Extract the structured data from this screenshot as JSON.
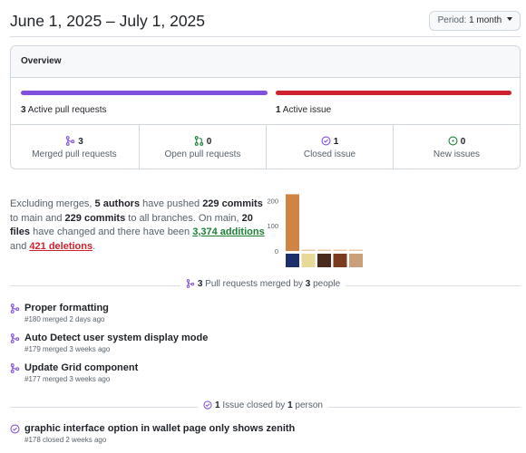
{
  "header": {
    "date_range": "June 1, 2025 – July 1, 2025",
    "period_label": "Period:",
    "period_value": "1 month"
  },
  "overview": {
    "title": "Overview",
    "pr_bar": {
      "count": "3",
      "label": "Active pull requests",
      "color": "#8250df"
    },
    "issue_bar": {
      "count": "1",
      "label": "Active issue",
      "color": "#cf222e"
    },
    "stats": [
      {
        "icon": "merge-icon",
        "count": "3",
        "label": "Merged pull requests"
      },
      {
        "icon": "pull-request-icon",
        "count": "0",
        "label": "Open pull requests"
      },
      {
        "icon": "issue-closed-icon",
        "count": "1",
        "label": "Closed issue"
      },
      {
        "icon": "issue-opened-icon",
        "count": "0",
        "label": "New issues"
      }
    ]
  },
  "summary": {
    "p1": "Excluding merges, ",
    "authors": "5 authors",
    "p2": " have pushed ",
    "commits_main": "229 commits",
    "p3": " to main and ",
    "commits_all": "229 commits",
    "p4": " to all branches. On main, ",
    "files": "20 files",
    "p5": " have changed and there have been ",
    "additions": "3,374 additions",
    "p6": " and ",
    "deletions": "421 deletions",
    "p7": "."
  },
  "chart_data": {
    "type": "bar",
    "categories": [
      "author-1",
      "author-2",
      "author-3",
      "author-4",
      "author-5"
    ],
    "values": [
      225,
      2,
      1,
      1,
      0
    ],
    "yticks": [
      "200",
      "100",
      "0"
    ],
    "ylim": [
      0,
      230
    ],
    "bar_color": "#d18344",
    "avatar_colors": [
      "#1c2f6b",
      "#e8d89a",
      "#4a2a1c",
      "#7a3b1e",
      "#c9a07a"
    ]
  },
  "prs_section": {
    "count": "3",
    "text_a": " Pull requests merged by ",
    "people": "3",
    "text_b": " people",
    "items": [
      {
        "title": "Proper formatting",
        "meta": "#180 merged 2 days ago"
      },
      {
        "title": "Auto Detect user system display mode",
        "meta": "#179 merged 3 weeks ago"
      },
      {
        "title": "Update Grid component",
        "meta": "#177 merged 3 weeks ago"
      }
    ]
  },
  "issues_section": {
    "count": "1",
    "text_a": " Issue closed by ",
    "people": "1",
    "text_b": " person",
    "items": [
      {
        "title": "graphic interface option in wallet page only shows zenith",
        "meta": "#178 closed 2 weeks ago"
      }
    ]
  }
}
